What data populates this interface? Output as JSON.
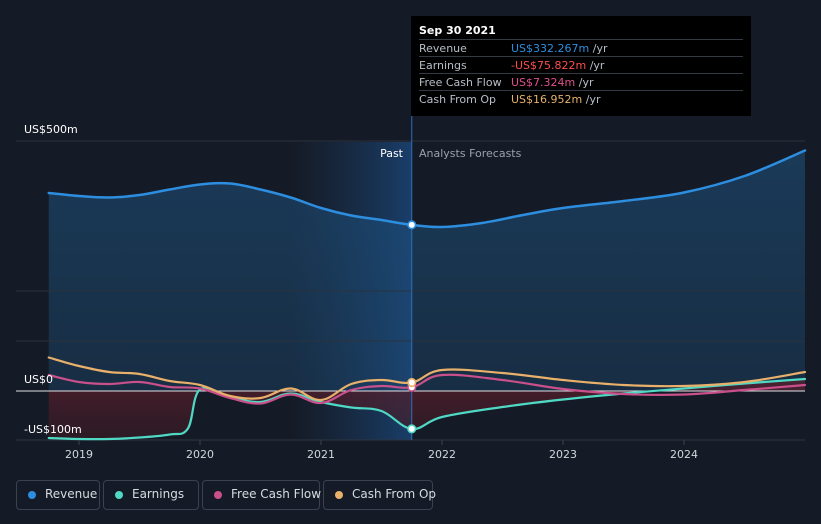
{
  "chart_data": {
    "type": "line",
    "y_unit_label_top": "US$500m",
    "y_unit_label_zero": "US$0",
    "y_unit_label_bottom": "-US$100m",
    "ylim": [
      -100,
      500
    ],
    "x_ticks": [
      "2019",
      "2020",
      "2021",
      "2022",
      "2023",
      "2024"
    ],
    "past_label": "Past",
    "forecast_label": "Analysts Forecasts",
    "divider_date": 2021.75,
    "series": [
      {
        "name": "Revenue",
        "color": "#2d8ee0",
        "points": [
          [
            2018.75,
            396
          ],
          [
            2019.0,
            390
          ],
          [
            2019.25,
            387
          ],
          [
            2019.5,
            392
          ],
          [
            2019.75,
            403
          ],
          [
            2020.0,
            413
          ],
          [
            2020.25,
            415
          ],
          [
            2020.5,
            403
          ],
          [
            2020.75,
            387
          ],
          [
            2021.0,
            366
          ],
          [
            2021.25,
            351
          ],
          [
            2021.5,
            342
          ],
          [
            2021.75,
            332.267
          ],
          [
            2022.0,
            328
          ],
          [
            2022.33,
            336
          ],
          [
            2022.67,
            352
          ],
          [
            2023.0,
            366
          ],
          [
            2023.5,
            380
          ],
          [
            2024.0,
            397
          ],
          [
            2024.5,
            430
          ],
          [
            2025.0,
            481
          ]
        ]
      },
      {
        "name": "Earnings",
        "color": "#4fd8c4",
        "points": [
          [
            2018.75,
            -94
          ],
          [
            2019.0,
            -96
          ],
          [
            2019.25,
            -96
          ],
          [
            2019.5,
            -93
          ],
          [
            2019.75,
            -87
          ],
          [
            2019.9,
            -75
          ],
          [
            2020.0,
            3
          ],
          [
            2020.25,
            -12
          ],
          [
            2020.5,
            -22
          ],
          [
            2020.75,
            -5
          ],
          [
            2021.0,
            -22
          ],
          [
            2021.25,
            -33
          ],
          [
            2021.5,
            -40
          ],
          [
            2021.75,
            -75.822
          ],
          [
            2022.0,
            -52
          ],
          [
            2022.5,
            -32
          ],
          [
            2023.0,
            -17
          ],
          [
            2023.5,
            -5
          ],
          [
            2024.0,
            5
          ],
          [
            2024.5,
            15
          ],
          [
            2025.0,
            24
          ]
        ]
      },
      {
        "name": "Free Cash Flow",
        "color": "#c9508a",
        "points": [
          [
            2018.75,
            32
          ],
          [
            2019.0,
            18
          ],
          [
            2019.25,
            14
          ],
          [
            2019.5,
            18
          ],
          [
            2019.75,
            8
          ],
          [
            2020.0,
            5
          ],
          [
            2020.25,
            -14
          ],
          [
            2020.5,
            -25
          ],
          [
            2020.75,
            -7
          ],
          [
            2021.0,
            -24
          ],
          [
            2021.25,
            2
          ],
          [
            2021.5,
            10
          ],
          [
            2021.75,
            7.324
          ],
          [
            2022.0,
            32
          ],
          [
            2022.5,
            22
          ],
          [
            2023.0,
            4
          ],
          [
            2023.5,
            -6
          ],
          [
            2024.0,
            -7
          ],
          [
            2024.5,
            2
          ],
          [
            2025.0,
            12
          ]
        ]
      },
      {
        "name": "Cash From Op",
        "color": "#e8b06a",
        "points": [
          [
            2018.75,
            67
          ],
          [
            2019.0,
            50
          ],
          [
            2019.25,
            38
          ],
          [
            2019.5,
            34
          ],
          [
            2019.75,
            20
          ],
          [
            2020.0,
            12
          ],
          [
            2020.25,
            -10
          ],
          [
            2020.5,
            -14
          ],
          [
            2020.75,
            5
          ],
          [
            2021.0,
            -18
          ],
          [
            2021.25,
            14
          ],
          [
            2021.5,
            22
          ],
          [
            2021.75,
            16.952
          ],
          [
            2022.0,
            42
          ],
          [
            2022.5,
            36
          ],
          [
            2023.0,
            22
          ],
          [
            2023.5,
            12
          ],
          [
            2024.0,
            10
          ],
          [
            2024.5,
            18
          ],
          [
            2025.0,
            38
          ]
        ]
      }
    ]
  },
  "tooltip": {
    "date": "Sep 30 2021",
    "rows": [
      {
        "name": "Revenue",
        "value": "US$332.267m",
        "unit": "/yr",
        "color": "#2d8ee0"
      },
      {
        "name": "Earnings",
        "value": "-US$75.822m",
        "unit": "/yr",
        "color": "#ff4d4d"
      },
      {
        "name": "Free Cash Flow",
        "value": "US$7.324m",
        "unit": "/yr",
        "color": "#e04f8f"
      },
      {
        "name": "Cash From Op",
        "value": "US$16.952m",
        "unit": "/yr",
        "color": "#e8b06a"
      }
    ]
  },
  "legend": [
    {
      "label": "Revenue",
      "color": "#2d8ee0"
    },
    {
      "label": "Earnings",
      "color": "#4fd8c4"
    },
    {
      "label": "Free Cash Flow",
      "color": "#c9508a"
    },
    {
      "label": "Cash From Op",
      "color": "#e8b06a"
    }
  ]
}
